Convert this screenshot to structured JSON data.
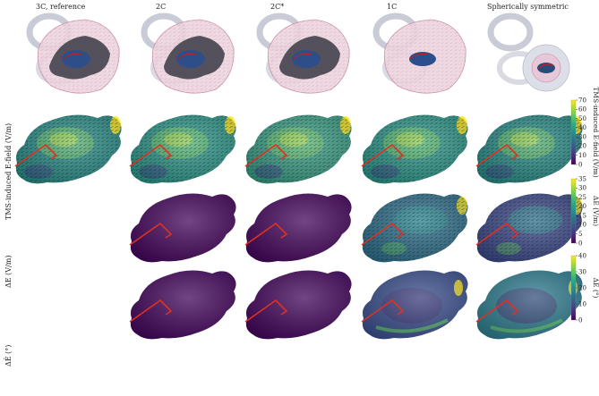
{
  "figure": {
    "columns": [
      {
        "title": "3C, reference",
        "icon": "head-model-3c"
      },
      {
        "title": "2C",
        "icon": "head-model-2c"
      },
      {
        "title": "2C*",
        "icon": "head-model-2c-star"
      },
      {
        "title": "1C",
        "icon": "head-model-1c"
      },
      {
        "title": "Spherically symmetric",
        "icon": "head-model-sphere"
      }
    ],
    "rows": [
      {
        "label": "TMS-induced E-field (V/m)",
        "colorbar_label": "TMS-induced E-field (V/m)",
        "ticks": [
          "0",
          "10",
          "20",
          "30",
          "40",
          "50",
          "60",
          "70"
        ],
        "empty_columns": []
      },
      {
        "label": "ΔE (V/m)",
        "colorbar_label": "ΔE (V/m)",
        "ticks": [
          "0",
          "5",
          "10",
          "15",
          "20",
          "25",
          "30",
          "35"
        ],
        "empty_columns": [
          0
        ]
      },
      {
        "label": "ΔÊ (°)",
        "colorbar_label": "ΔÊ (°)",
        "ticks": [
          "0",
          "10",
          "20",
          "30",
          "40"
        ],
        "empty_columns": [
          0
        ]
      }
    ],
    "colormap": [
      "#440154",
      "#472d7b",
      "#3b528b",
      "#2c728e",
      "#21918c",
      "#28ae80",
      "#5ec962",
      "#addc30",
      "#fde725"
    ],
    "brain_fill": {
      "row0": [
        "#2a8a86",
        "#2e9488",
        "#3a9a84",
        "#2e9488",
        "#2a8a86"
      ],
      "row1": [
        "#44075a",
        "#44075a",
        "#44075a",
        "#2f6e8a",
        "#3c4a88"
      ],
      "row2": [
        "#42075a",
        "#42075a",
        "#42075a",
        "#3a4e8a",
        "#2f7a8c"
      ]
    },
    "coil_color": "#e03020"
  }
}
